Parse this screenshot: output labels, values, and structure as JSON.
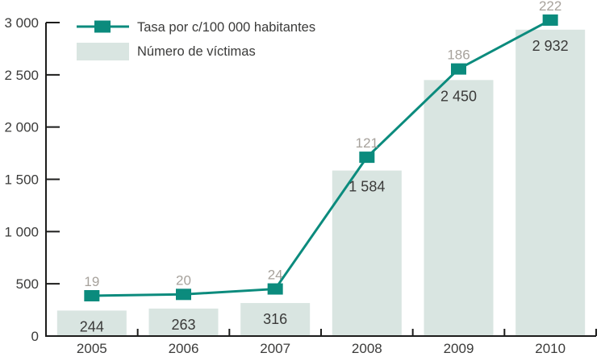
{
  "chart_data": {
    "type": "combo",
    "title": "",
    "subtitle": "",
    "xlabel": "",
    "ylabel": "",
    "categories": [
      "2005",
      "2006",
      "2007",
      "2008",
      "2009",
      "2010"
    ],
    "series": [
      {
        "name": "Tasa por c/100 000 habitantes",
        "type": "line",
        "values": [
          19,
          20,
          24,
          121,
          186,
          222
        ],
        "labels": [
          "19",
          "20",
          "24",
          "121",
          "186",
          "222"
        ],
        "color": "#0b8b7d"
      },
      {
        "name": "Número de víctimas",
        "type": "bar",
        "values": [
          244,
          263,
          316,
          1584,
          2450,
          2932
        ],
        "labels": [
          "244",
          "263",
          "316",
          "1 584",
          "2 450",
          "2 932"
        ],
        "color": "#d9e5e1"
      }
    ],
    "ylim": [
      0,
      3000
    ],
    "y_ticks": [
      {
        "value": 0,
        "label": "0"
      },
      {
        "value": 500,
        "label": "500"
      },
      {
        "value": 1000,
        "label": "1 000"
      },
      {
        "value": 1500,
        "label": "1 500"
      },
      {
        "value": 2000,
        "label": "2 000"
      },
      {
        "value": 2500,
        "label": "2 500"
      },
      {
        "value": 3000,
        "label": "3 000"
      }
    ],
    "grid": false,
    "legend_position": "top-left"
  },
  "colors": {
    "line": "#0b8b7d",
    "bar_fill": "#d9e5e1",
    "axis": "#1c1c1b",
    "dark_text": "#3a3a39",
    "rate_label_text": "#a7a29c",
    "background": "#ffffff"
  }
}
